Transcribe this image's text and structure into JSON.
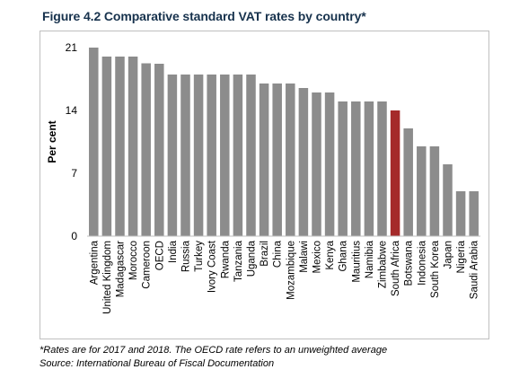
{
  "title": "Figure 4.2 Comparative standard VAT rates by country*",
  "notes": {
    "line1": "*Rates are for 2017 and 2018. The OECD rate refers to an unweighted average",
    "line2": "Source: International Bureau of Fiscal Documentation"
  },
  "colors": {
    "bar": "#8c8c8c",
    "highlight": "#a52a2a",
    "title": "#17324d"
  },
  "chart_data": {
    "type": "bar",
    "title": "Figure 4.2 Comparative standard VAT rates by country*",
    "xlabel": "",
    "ylabel": "Per cent",
    "ylim": [
      0,
      21
    ],
    "yticks": [
      0,
      7,
      14,
      21
    ],
    "grid": false,
    "legend": "none",
    "highlight": "South Africa",
    "categories": [
      "Argentina",
      "United Kingdom",
      "Madagascar",
      "Morocco",
      "Cameroon",
      "OECD",
      "India",
      "Russia",
      "Turkey",
      "Ivory Coast",
      "Rwanda",
      "Tanzania",
      "Uganda",
      "Brazil",
      "China",
      "Mozambique",
      "Malawi",
      "Mexico",
      "Kenya",
      "Ghana",
      "Mauritius",
      "Namibia",
      "Zimbabwe",
      "South Africa",
      "Botswana",
      "Indonesia",
      "South Korea",
      "Japan",
      "Nigeria",
      "Saudi Arabia"
    ],
    "values": [
      21,
      20,
      20,
      20,
      19.25,
      19.2,
      18,
      18,
      18,
      18,
      18,
      18,
      18,
      17,
      17,
      17,
      16.5,
      16,
      16,
      15,
      15,
      15,
      15,
      14,
      12,
      10,
      10,
      8,
      5,
      5
    ]
  }
}
